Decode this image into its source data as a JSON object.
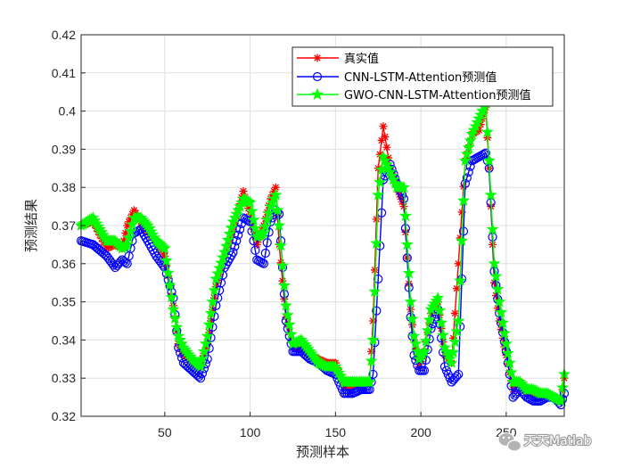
{
  "chart_data": {
    "type": "line",
    "xlabel": "预测样本",
    "ylabel": "预测结果",
    "xlim": [
      1,
      284
    ],
    "ylim": [
      0.32,
      0.42
    ],
    "xticks": [
      50,
      100,
      150,
      200,
      250
    ],
    "yticks": [
      0.32,
      0.33,
      0.34,
      0.35,
      0.36,
      0.37,
      0.38,
      0.39,
      0.4,
      0.41,
      0.42
    ],
    "grid": true,
    "legend_position": "top-right",
    "x": [
      1,
      8,
      16,
      21,
      25,
      28,
      32,
      36,
      40,
      45,
      50,
      55,
      58,
      61,
      66,
      71,
      75,
      80,
      85,
      90,
      96,
      100,
      104,
      108,
      112,
      115,
      117,
      121,
      125,
      130,
      135,
      140,
      145,
      150,
      155,
      160,
      165,
      170,
      172,
      175,
      178,
      182,
      186,
      190,
      194,
      196,
      199,
      202,
      206,
      210,
      214,
      218,
      222,
      226,
      230,
      234,
      238,
      240,
      243,
      246,
      250,
      254,
      258,
      262,
      266,
      270,
      274,
      278,
      282,
      284
    ],
    "series": [
      {
        "name": "真实值",
        "color": "#ff0000",
        "marker": "asterisk",
        "values": [
          0.37,
          0.371,
          0.364,
          0.365,
          0.364,
          0.37,
          0.374,
          0.371,
          0.368,
          0.366,
          0.362,
          0.349,
          0.339,
          0.336,
          0.334,
          0.334,
          0.339,
          0.354,
          0.362,
          0.369,
          0.379,
          0.373,
          0.365,
          0.37,
          0.377,
          0.38,
          0.365,
          0.346,
          0.338,
          0.338,
          0.336,
          0.335,
          0.334,
          0.334,
          0.328,
          0.328,
          0.328,
          0.329,
          0.345,
          0.385,
          0.396,
          0.385,
          0.38,
          0.375,
          0.348,
          0.34,
          0.333,
          0.337,
          0.347,
          0.35,
          0.336,
          0.334,
          0.36,
          0.387,
          0.394,
          0.395,
          0.401,
          0.385,
          0.355,
          0.345,
          0.336,
          0.327,
          0.329,
          0.326,
          0.326,
          0.325,
          0.326,
          0.325,
          0.324,
          0.33
        ]
      },
      {
        "name": "CNN-LSTM-Attention预测值",
        "color": "#0000ff",
        "marker": "circle",
        "values": [
          0.366,
          0.365,
          0.362,
          0.359,
          0.361,
          0.36,
          0.368,
          0.369,
          0.366,
          0.362,
          0.359,
          0.351,
          0.338,
          0.334,
          0.332,
          0.33,
          0.335,
          0.349,
          0.359,
          0.363,
          0.372,
          0.371,
          0.361,
          0.36,
          0.371,
          0.374,
          0.373,
          0.345,
          0.337,
          0.337,
          0.335,
          0.334,
          0.332,
          0.331,
          0.326,
          0.326,
          0.327,
          0.327,
          0.331,
          0.356,
          0.382,
          0.386,
          0.381,
          0.377,
          0.346,
          0.336,
          0.332,
          0.332,
          0.343,
          0.348,
          0.333,
          0.329,
          0.331,
          0.381,
          0.387,
          0.388,
          0.389,
          0.385,
          0.358,
          0.347,
          0.337,
          0.325,
          0.327,
          0.325,
          0.324,
          0.324,
          0.325,
          0.325,
          0.323,
          0.326
        ]
      },
      {
        "name": "GWO-CNN-LSTM-Attention预测值",
        "color": "#00ff00",
        "marker": "star",
        "values": [
          0.37,
          0.372,
          0.366,
          0.366,
          0.364,
          0.365,
          0.372,
          0.372,
          0.37,
          0.366,
          0.364,
          0.348,
          0.341,
          0.338,
          0.335,
          0.333,
          0.341,
          0.356,
          0.363,
          0.371,
          0.377,
          0.376,
          0.367,
          0.368,
          0.375,
          0.378,
          0.37,
          0.349,
          0.339,
          0.34,
          0.337,
          0.334,
          0.333,
          0.333,
          0.329,
          0.329,
          0.329,
          0.329,
          0.34,
          0.378,
          0.388,
          0.384,
          0.38,
          0.38,
          0.35,
          0.341,
          0.335,
          0.337,
          0.348,
          0.351,
          0.338,
          0.334,
          0.345,
          0.387,
          0.394,
          0.398,
          0.402,
          0.387,
          0.36,
          0.35,
          0.339,
          0.329,
          0.329,
          0.327,
          0.327,
          0.326,
          0.326,
          0.325,
          0.324,
          0.331
        ]
      }
    ]
  },
  "watermark": {
    "text": "天天Matlab",
    "icon": "wechat-icon"
  }
}
